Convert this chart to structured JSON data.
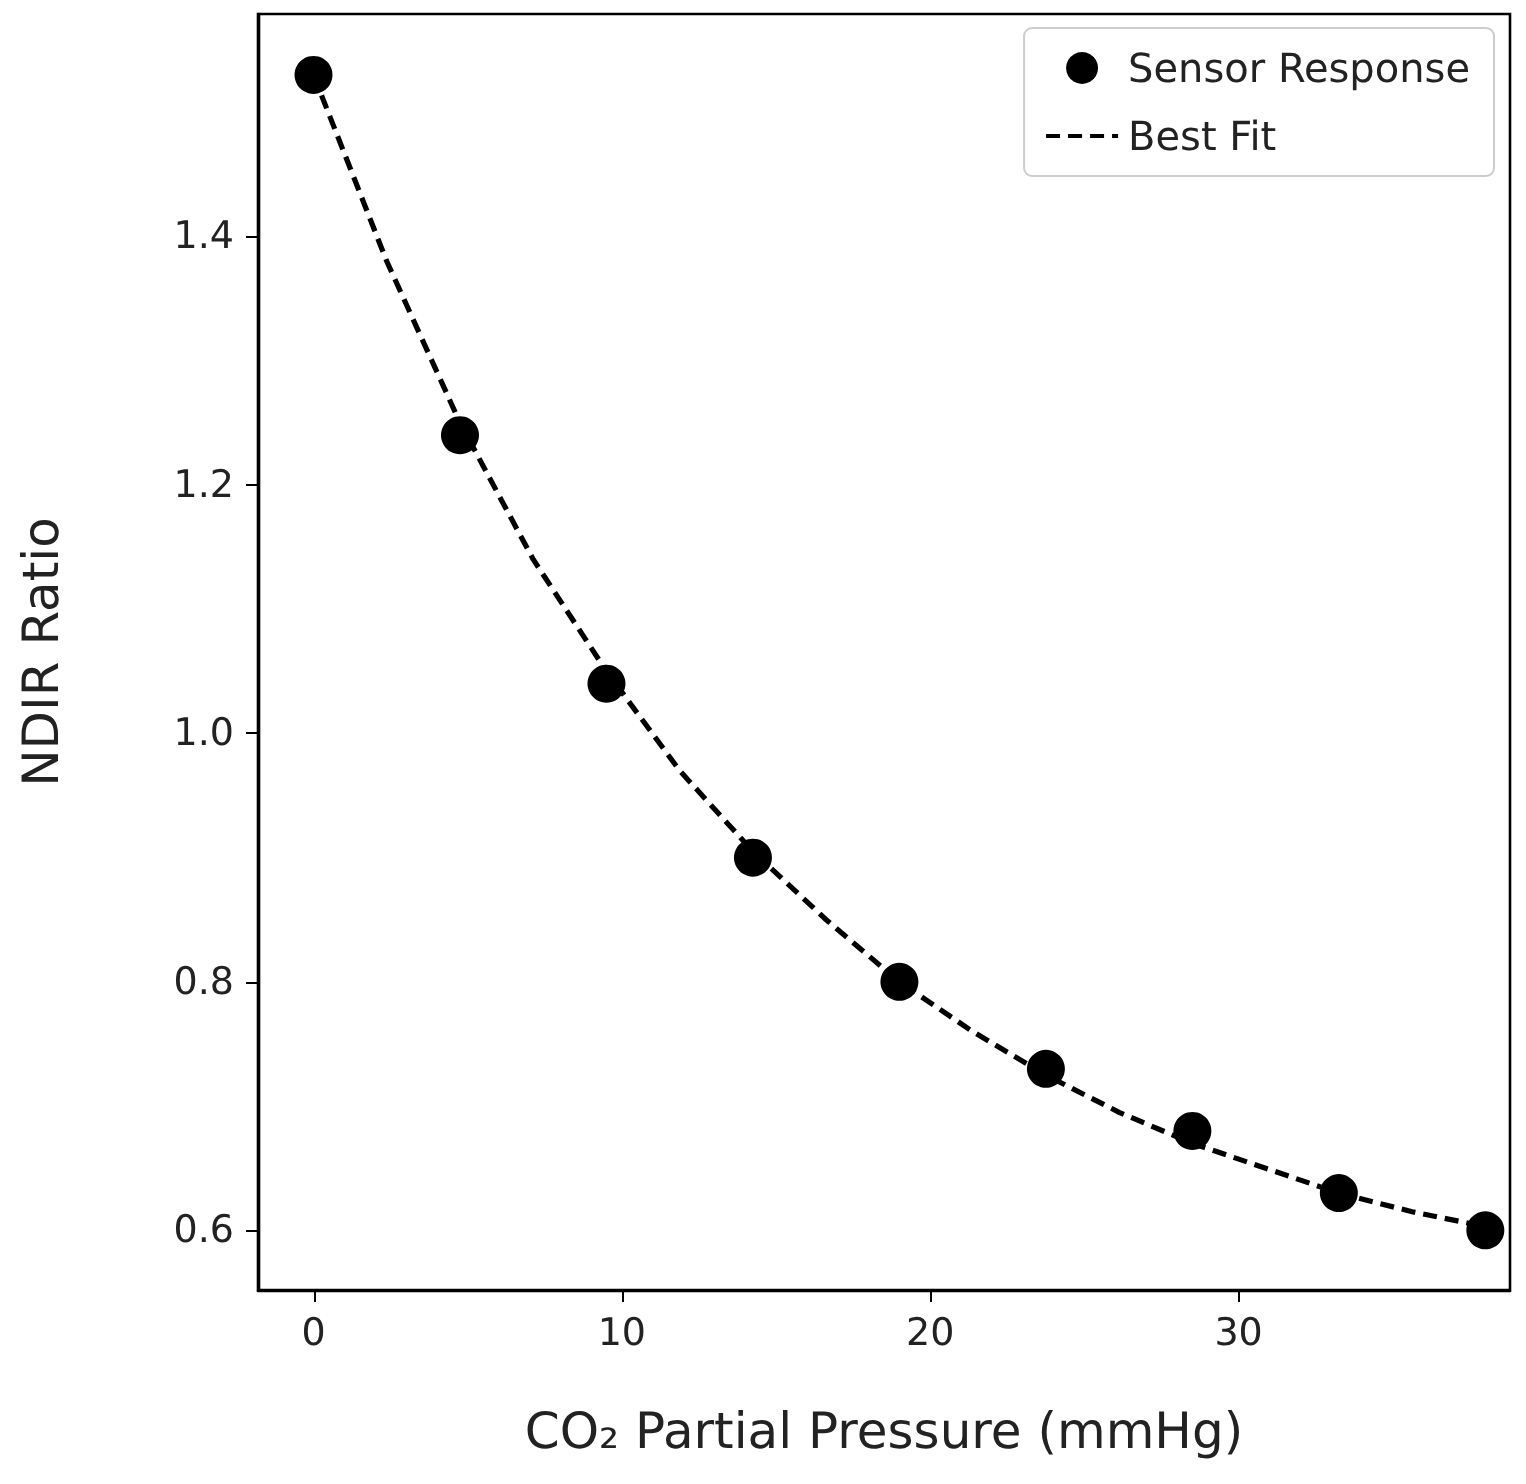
{
  "chart_data": {
    "type": "scatter",
    "xlabel": "CO₂ Partial Pressure (mmHg)",
    "ylabel": "NDIR Ratio",
    "xlim": [
      -1.8,
      38.8
    ],
    "xticks": [
      0,
      10,
      20,
      30
    ],
    "ylim": [
      0.552,
      1.579
    ],
    "yticks": [
      {
        "value": 0.6,
        "label": "0.6"
      },
      {
        "value": 0.8,
        "label": "0.8"
      },
      {
        "value": 1,
        "label": "1.0"
      },
      {
        "value": 1.2,
        "label": "1.2"
      },
      {
        "value": 1.4,
        "label": "1.4"
      }
    ],
    "grid": false,
    "legend": "top right",
    "series": [
      {
        "name": "Sensor Response",
        "marker": "circle",
        "color": "#000000",
        "x": [
          0,
          4.75,
          9.5,
          14.25,
          19,
          23.75,
          28.5,
          33.25,
          38
        ],
        "values": [
          1.53,
          1.24,
          1.04,
          0.9,
          0.8,
          0.73,
          0.68,
          0.63,
          0.6
        ]
      },
      {
        "name": "Best Fit",
        "type": "line",
        "line_style": "dashed",
        "color": "#000000",
        "x": [
          0,
          2.375,
          4.75,
          7.125,
          9.5,
          11.875,
          14.25,
          16.625,
          19,
          21.375,
          23.75,
          26.125,
          28.5,
          30.875,
          33.25,
          35.625,
          38
        ],
        "values": [
          1.53,
          1.38,
          1.25,
          1.14,
          1.05,
          0.97,
          0.905,
          0.85,
          0.8,
          0.76,
          0.725,
          0.695,
          0.67,
          0.65,
          0.63,
          0.615,
          0.603
        ]
      }
    ]
  }
}
